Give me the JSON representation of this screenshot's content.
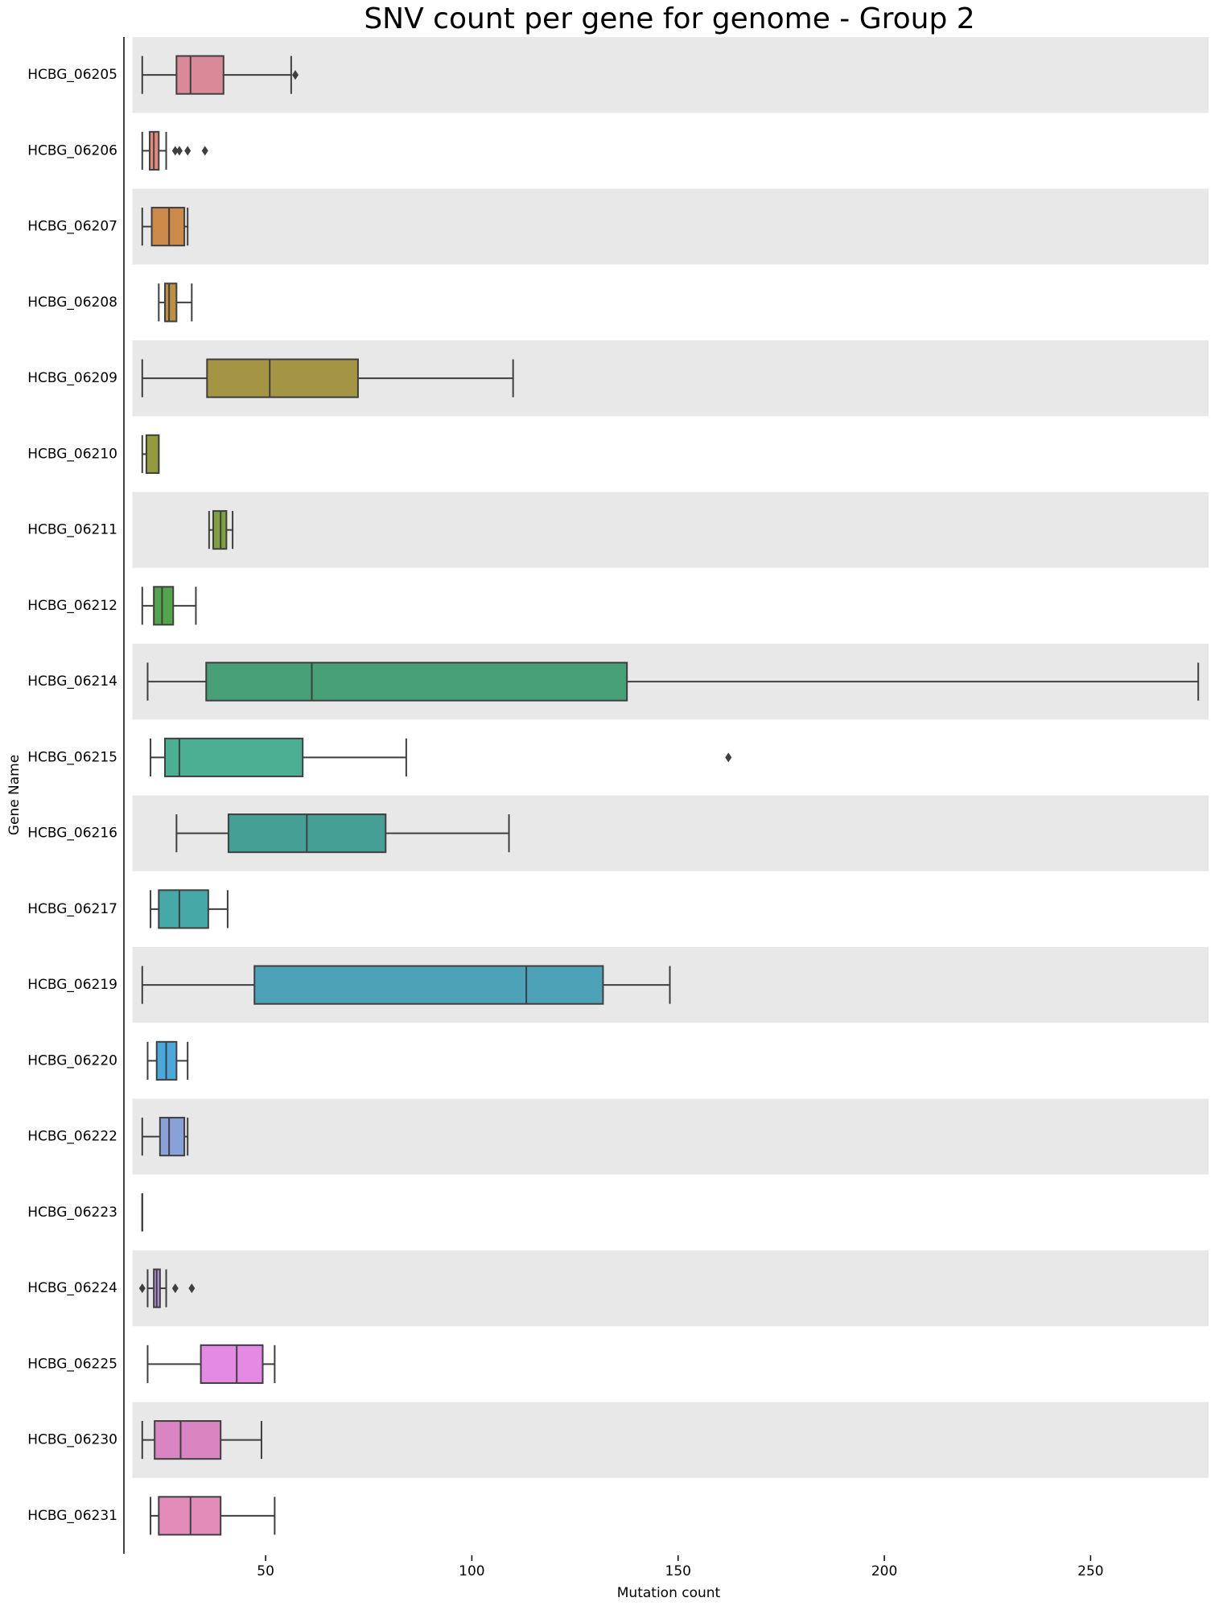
{
  "chart_data": {
    "type": "box",
    "title": "SNV count per gene for genome - Group 2",
    "x_label": "Mutation count",
    "y_label": "Gene Name",
    "xlim": [
      17.7,
      278.6
    ],
    "xticks": [
      50,
      100,
      150,
      200,
      250
    ],
    "band_color": "#e8e8e8",
    "categories": [
      "HCBG_06205",
      "HCBG_06206",
      "HCBG_06207",
      "HCBG_06208",
      "HCBG_06209",
      "HCBG_06210",
      "HCBG_06211",
      "HCBG_06212",
      "HCBG_06214",
      "HCBG_06215",
      "HCBG_06216",
      "HCBG_06217",
      "HCBG_06219",
      "HCBG_06220",
      "HCBG_06222",
      "HCBG_06223",
      "HCBG_06224",
      "HCBG_06225",
      "HCBG_06230",
      "HCBG_06231"
    ],
    "boxes": [
      {
        "whislo": 20.1,
        "q1": 28.4,
        "med": 31.8,
        "q3": 39.8,
        "whishi": 56.2,
        "fliers": [
          57.2
        ],
        "color": "#d98997"
      },
      {
        "whislo": 20.1,
        "q1": 21.9,
        "med": 22.9,
        "q3": 24.1,
        "whishi": 25.9,
        "fliers": [
          28.1,
          29.1,
          31.1,
          35.3
        ],
        "color": "#e38a7c"
      },
      {
        "whislo": 20.1,
        "q1": 22.4,
        "med": 26.6,
        "q3": 30.3,
        "whishi": 31.1,
        "fliers": [],
        "color": "#cc8a4a"
      },
      {
        "whislo": 24.1,
        "q1": 25.6,
        "med": 26.6,
        "q3": 28.4,
        "whishi": 32.1,
        "fliers": [],
        "color": "#bc9040"
      },
      {
        "whislo": 20.1,
        "q1": 35.8,
        "med": 51.0,
        "q3": 72.4,
        "whishi": 110.0,
        "fliers": [],
        "color": "#a39544"
      },
      {
        "whislo": 20.1,
        "q1": 21.1,
        "med": 21.1,
        "q3": 24.1,
        "whishi": 24.1,
        "fliers": [],
        "color": "#949a3e"
      },
      {
        "whislo": 36.3,
        "q1": 37.3,
        "med": 39.1,
        "q3": 40.5,
        "whishi": 42.0,
        "fliers": [],
        "color": "#7fa03f"
      },
      {
        "whislo": 20.1,
        "q1": 22.9,
        "med": 24.9,
        "q3": 27.6,
        "whishi": 33.1,
        "fliers": [],
        "color": "#52a54c"
      },
      {
        "whislo": 21.4,
        "q1": 35.6,
        "med": 61.2,
        "q3": 137.6,
        "whishi": 276.1,
        "fliers": [],
        "color": "#47a077"
      },
      {
        "whislo": 22.1,
        "q1": 25.6,
        "med": 29.1,
        "q3": 59.0,
        "whishi": 84.1,
        "fliers": [
          162.2
        ],
        "color": "#4bb093"
      },
      {
        "whislo": 28.4,
        "q1": 41.0,
        "med": 60.0,
        "q3": 79.1,
        "whishi": 109.0,
        "fliers": [],
        "color": "#469f95"
      },
      {
        "whislo": 22.1,
        "q1": 24.1,
        "med": 29.1,
        "q3": 36.1,
        "whishi": 40.8,
        "fliers": [],
        "color": "#47a8a8"
      },
      {
        "whislo": 20.1,
        "q1": 47.3,
        "med": 113.2,
        "q3": 131.8,
        "whishi": 148.0,
        "fliers": [],
        "color": "#4ea2b8"
      },
      {
        "whislo": 21.4,
        "q1": 23.6,
        "med": 25.9,
        "q3": 28.4,
        "whishi": 31.1,
        "fliers": [],
        "color": "#4aa9dc"
      },
      {
        "whislo": 20.1,
        "q1": 24.4,
        "med": 26.6,
        "q3": 30.3,
        "whishi": 31.1,
        "fliers": [],
        "color": "#8aa0d8"
      },
      {
        "whislo": 20.1,
        "q1": 20.1,
        "med": 20.1,
        "q3": 20.1,
        "whishi": 20.1,
        "fliers": [],
        "color": "#a694d8"
      },
      {
        "whislo": 21.4,
        "q1": 22.9,
        "med": 23.6,
        "q3": 24.4,
        "whishi": 25.9,
        "fliers": [
          20.1,
          28.1,
          32.1
        ],
        "color": "#b48fd8"
      },
      {
        "whislo": 21.4,
        "q1": 34.3,
        "med": 43.0,
        "q3": 49.3,
        "whishi": 52.2,
        "fliers": [],
        "color": "#e48ae4"
      },
      {
        "whislo": 20.1,
        "q1": 23.1,
        "med": 29.4,
        "q3": 39.1,
        "whishi": 49.0,
        "fliers": [],
        "color": "#d885c2"
      },
      {
        "whislo": 22.1,
        "q1": 24.1,
        "med": 31.8,
        "q3": 39.1,
        "whishi": 52.2,
        "fliers": [],
        "color": "#e38cba"
      }
    ]
  }
}
